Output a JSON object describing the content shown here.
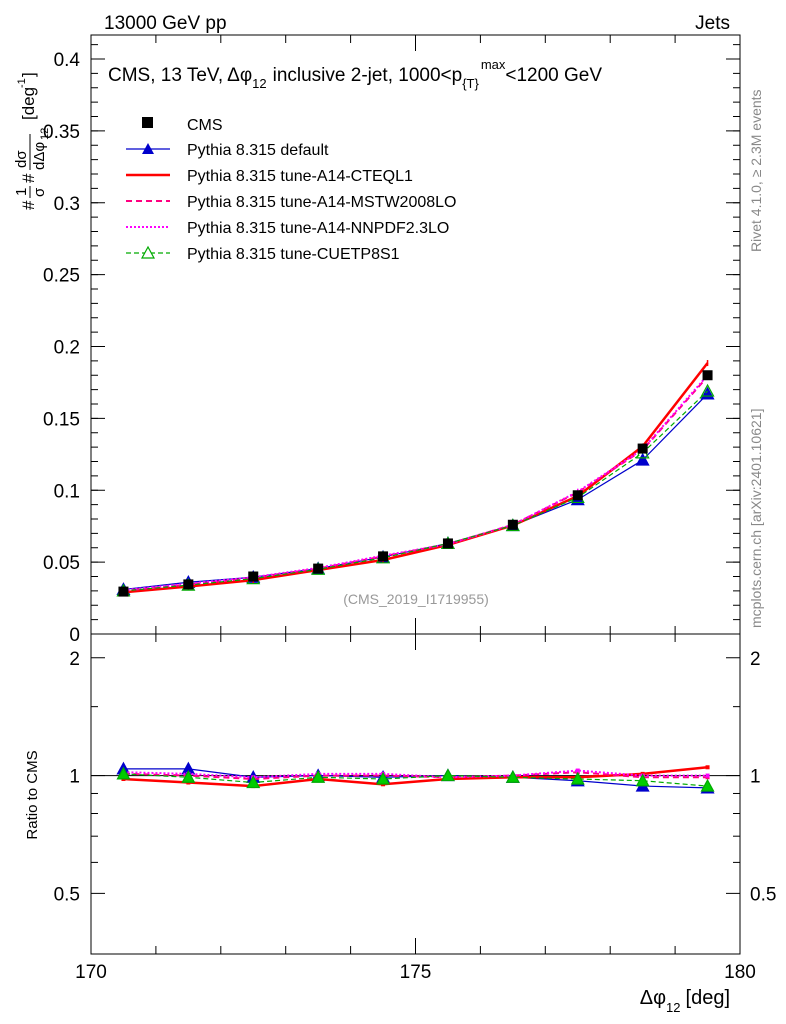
{
  "header": {
    "left": "13000 GeV pp",
    "right": "Jets"
  },
  "side_labels": {
    "rivet": "Rivet 4.1.0, ≥ 2.3M events",
    "mcplots": "mcplots.cern.ch [arXiv:2401.10621]"
  },
  "chart_data": [
    {
      "type": "line",
      "panel": "main",
      "title": "CMS, 13 TeV, Δφ₁₂ inclusive 2-jet, 1000<p_T^max<1200 GeV",
      "title_parts": {
        "prefix": "CMS, 13 TeV,",
        "dphi": "Δφ",
        "sub12": "12",
        "mid": "inclusive 2-jet, 1000<p",
        "subT": "{T}",
        "supmax": "max",
        "suffix": "<1200 GeV"
      },
      "watermark": "(CMS_2019_I1719955)",
      "ylabel": "#1/σ #dσ/dΔφ₁₂ [deg⁻¹]",
      "ylabel_parts": {
        "hash1": "#",
        "one": "1",
        "sigma": "σ",
        "hash2": "#",
        "dsig": "dσ",
        "ddphi": "dΔφ",
        "sub12": "12",
        "unit": "[deg",
        "unitsup": "-1",
        "unitend": "]"
      },
      "xlim": [
        170,
        180
      ],
      "ylim": [
        0,
        0.4167
      ],
      "yticks": [
        0,
        0.05,
        0.1,
        0.15,
        0.2,
        0.25,
        0.3,
        0.35,
        0.4
      ],
      "ytick_labels": [
        "0",
        "0.05",
        "0.1",
        "0.15",
        "0.2",
        "0.25",
        "0.3",
        "0.35",
        "0.4"
      ],
      "x": [
        170.5,
        171.5,
        172.5,
        173.5,
        174.5,
        175.5,
        176.5,
        177.5,
        178.5,
        179.5
      ],
      "series": [
        {
          "name": "CMS",
          "color": "#000000",
          "style": "data",
          "values": [
            0.0295,
            0.0345,
            0.04,
            0.0455,
            0.054,
            0.063,
            0.076,
            0.0965,
            0.129,
            0.18
          ]
        },
        {
          "name": "Pythia 8.315 default",
          "color": "#0000cc",
          "style": "solid-triangle",
          "values": [
            0.031,
            0.036,
            0.0395,
            0.0455,
            0.0535,
            0.063,
            0.0755,
            0.0935,
            0.121,
            0.167
          ]
        },
        {
          "name": "Pythia 8.315 tune-A14-CTEQL1",
          "color": "#ff0000",
          "style": "solid-thick",
          "values": [
            0.029,
            0.033,
            0.0375,
            0.0445,
            0.0515,
            0.062,
            0.0755,
            0.096,
            0.1305,
            0.1885
          ]
        },
        {
          "name": "Pythia 8.315 tune-A14-MSTW2008LO",
          "color": "#ff0080",
          "style": "dashed",
          "values": [
            0.03,
            0.0345,
            0.039,
            0.0455,
            0.054,
            0.0625,
            0.076,
            0.0985,
            0.128,
            0.179
          ]
        },
        {
          "name": "Pythia 8.315 tune-A14-NNPDF2.3LO",
          "color": "#ff00ff",
          "style": "dotted",
          "values": [
            0.0305,
            0.035,
            0.0395,
            0.046,
            0.0545,
            0.0625,
            0.076,
            0.099,
            0.1285,
            0.18
          ]
        },
        {
          "name": "Pythia 8.315 tune-CUETP8S1",
          "color": "#00aa00",
          "style": "dashed-open-triangle",
          "values": [
            0.03,
            0.034,
            0.0385,
            0.045,
            0.053,
            0.063,
            0.0755,
            0.095,
            0.126,
            0.169
          ]
        }
      ]
    },
    {
      "type": "line",
      "panel": "ratio",
      "ylabel": "Ratio to CMS",
      "xlabel": "Δφ₁₂ [deg]",
      "xlabel_parts": {
        "dphi": "Δφ",
        "sub12": "12",
        "unit": "[deg]"
      },
      "xlim": [
        170,
        180
      ],
      "ylim": [
        0.35,
        2.3
      ],
      "yticks": [
        0.5,
        1,
        2
      ],
      "ytick_labels": [
        "0.5",
        "1",
        "2"
      ],
      "xticks": [
        170,
        175,
        180
      ],
      "xtick_labels": [
        "170",
        "175",
        "180"
      ],
      "x": [
        170.5,
        171.5,
        172.5,
        173.5,
        174.5,
        175.5,
        176.5,
        177.5,
        178.5,
        179.5
      ],
      "series": [
        {
          "name": "Pythia 8.315 default",
          "color": "#0000cc",
          "values": [
            1.04,
            1.04,
            0.99,
            1.0,
            0.99,
            1.0,
            0.99,
            0.97,
            0.94,
            0.93
          ]
        },
        {
          "name": "Pythia 8.315 tune-A14-CTEQL1",
          "color": "#ff0000",
          "values": [
            0.98,
            0.96,
            0.94,
            0.98,
            0.95,
            0.98,
            0.99,
            0.99,
            1.01,
            1.05
          ]
        },
        {
          "name": "Pythia 8.315 tune-A14-MSTW2008LO",
          "color": "#ff0080",
          "values": [
            1.01,
            1.0,
            0.98,
            1.0,
            1.0,
            0.99,
            1.0,
            1.02,
            0.99,
            0.99
          ]
        },
        {
          "name": "Pythia 8.315 tune-A14-NNPDF2.3LO",
          "color": "#ff00ff",
          "values": [
            1.02,
            1.01,
            0.99,
            1.01,
            1.01,
            0.99,
            1.0,
            1.03,
            1.0,
            1.0
          ]
        },
        {
          "name": "Pythia 8.315 tune-CUETP8S1",
          "color": "#00aa00",
          "values": [
            1.01,
            0.99,
            0.96,
            0.99,
            0.98,
            1.0,
            0.99,
            0.98,
            0.97,
            0.94
          ]
        }
      ]
    }
  ]
}
